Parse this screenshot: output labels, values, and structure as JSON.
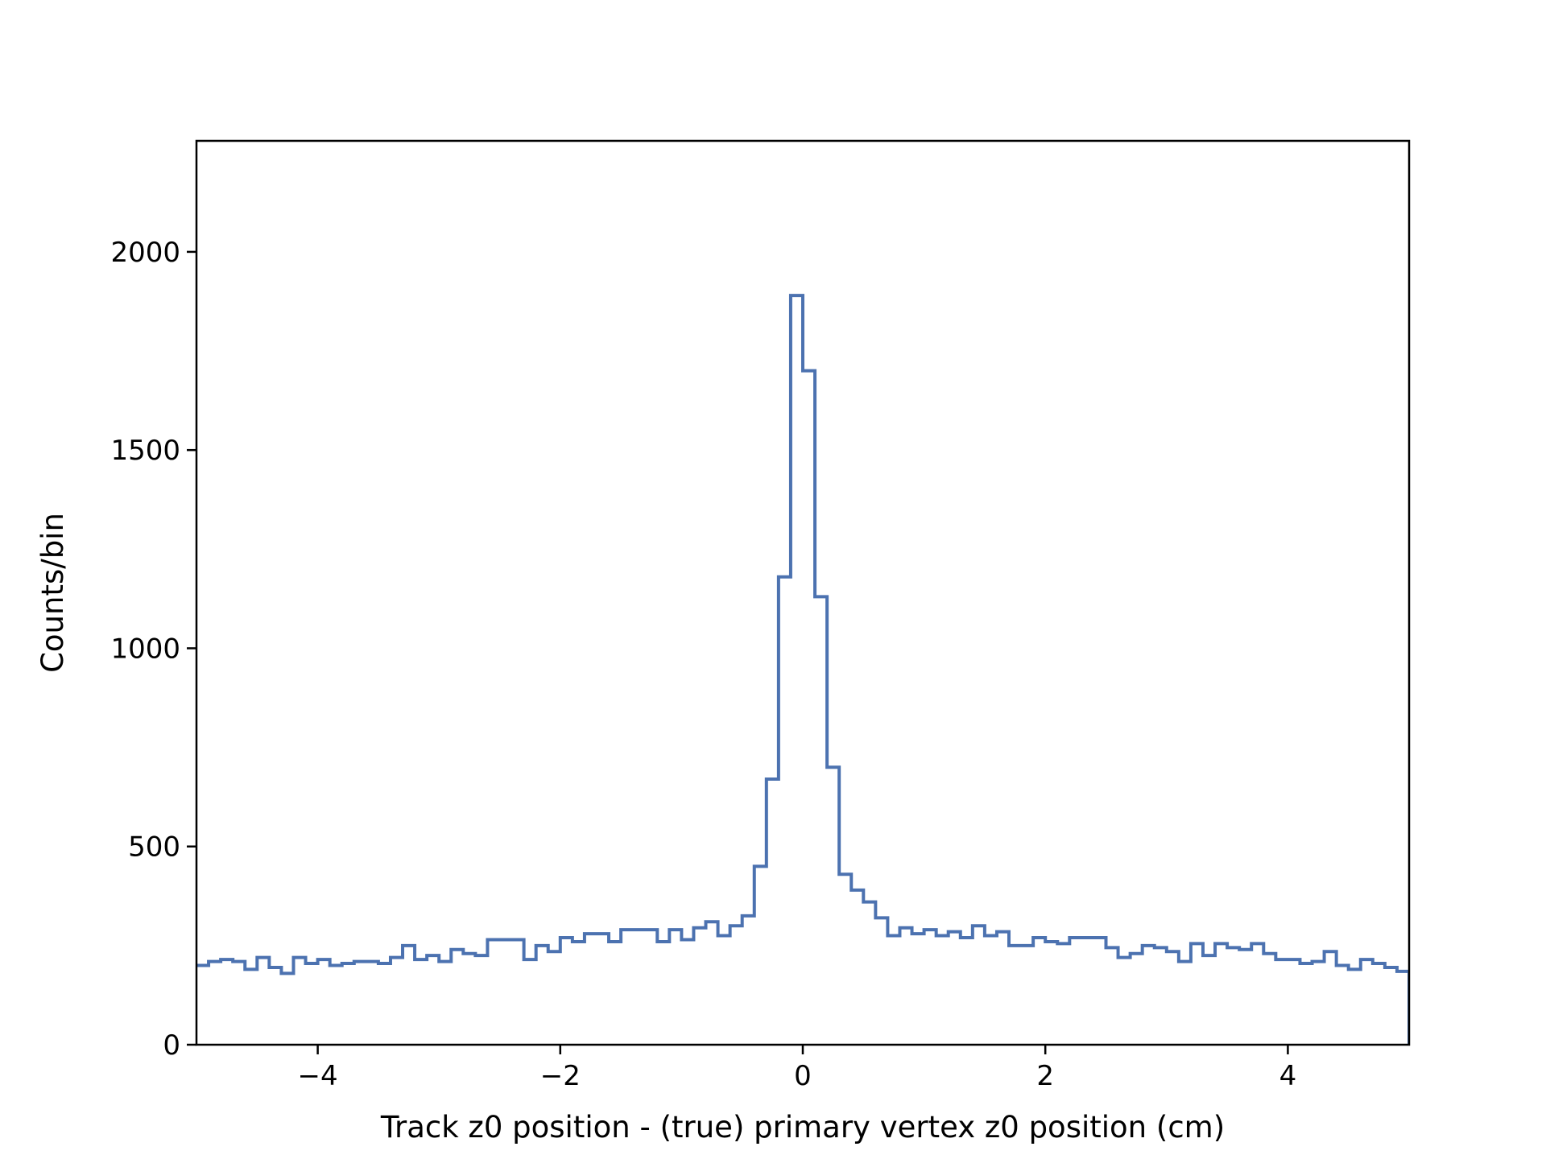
{
  "chart_data": {
    "type": "step-histogram",
    "xlabel": "Track z0 position - (true) primary vertex z0 position (cm)",
    "ylabel": "Counts/bin",
    "xlim": [
      -5,
      5
    ],
    "ylim": [
      0,
      2280
    ],
    "grid": false,
    "line_color": "#4c72b0",
    "x_ticks": [
      {
        "value": -4,
        "label": "−4"
      },
      {
        "value": -2,
        "label": "−2"
      },
      {
        "value": 0,
        "label": "0"
      },
      {
        "value": 2,
        "label": "2"
      },
      {
        "value": 4,
        "label": "4"
      }
    ],
    "y_ticks": [
      {
        "value": 0,
        "label": "0"
      },
      {
        "value": 500,
        "label": "500"
      },
      {
        "value": 1000,
        "label": "1000"
      },
      {
        "value": 1500,
        "label": "1500"
      },
      {
        "value": 2000,
        "label": "2000"
      }
    ],
    "bin_edges_range": [
      -5,
      5
    ],
    "bin_width": 0.1,
    "values": [
      200,
      210,
      215,
      210,
      190,
      220,
      195,
      180,
      220,
      205,
      215,
      200,
      205,
      210,
      210,
      205,
      220,
      250,
      215,
      225,
      210,
      240,
      230,
      225,
      265,
      265,
      265,
      215,
      250,
      235,
      270,
      260,
      280,
      280,
      260,
      290,
      290,
      290,
      260,
      290,
      265,
      295,
      310,
      275,
      300,
      325,
      450,
      670,
      1180,
      1890,
      1700,
      1130,
      700,
      430,
      390,
      360,
      320,
      275,
      295,
      280,
      290,
      275,
      285,
      270,
      300,
      275,
      285,
      250,
      250,
      270,
      260,
      255,
      270,
      270,
      270,
      245,
      220,
      230,
      250,
      245,
      235,
      210,
      255,
      225,
      255,
      245,
      240,
      255,
      230,
      215,
      215,
      205,
      210,
      235,
      200,
      190,
      215,
      205,
      195,
      185
    ]
  }
}
